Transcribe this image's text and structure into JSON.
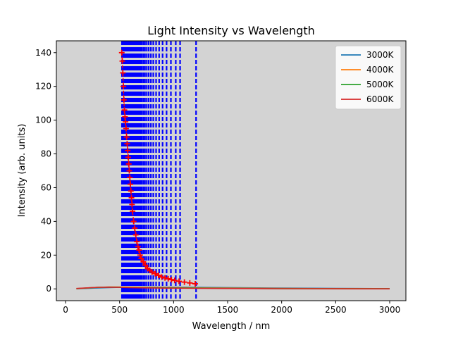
{
  "chart_data": {
    "type": "line",
    "title": "Light Intensity vs Wavelength",
    "xlabel": "Wavelength / nm",
    "ylabel": "Intensity (arb. units)",
    "xlim": [
      -85,
      3150
    ],
    "ylim": [
      -7,
      147
    ],
    "xticks": [
      0,
      500,
      1000,
      1500,
      2000,
      2500,
      3000
    ],
    "yticks": [
      0,
      20,
      40,
      60,
      80,
      100,
      120,
      140
    ],
    "grid": false,
    "background": "#d3d3d3",
    "legend_position": "top-right",
    "series": [
      {
        "name": "3000K",
        "color": "#1f77b4",
        "x": [
          100,
          200,
          300,
          400,
          500,
          600,
          800,
          1000,
          1200,
          1500,
          2000,
          2500,
          3000
        ],
        "y": [
          0.05,
          0.25,
          0.55,
          0.75,
          0.9,
          1.0,
          1.05,
          1.0,
          0.9,
          0.75,
          0.45,
          0.25,
          0.12
        ]
      },
      {
        "name": "4000K",
        "color": "#ff7f0e",
        "x": [
          100,
          200,
          300,
          400,
          500,
          600,
          800,
          1000,
          1200,
          1500,
          2000,
          2500,
          3000
        ],
        "y": [
          0.1,
          0.45,
          0.9,
          1.1,
          1.15,
          1.05,
          0.9,
          0.75,
          0.6,
          0.45,
          0.25,
          0.12,
          0.06
        ]
      },
      {
        "name": "5000K",
        "color": "#2ca02c",
        "x": [
          100,
          200,
          300,
          400,
          500,
          600,
          800,
          1000,
          1200,
          1500,
          2000,
          2500,
          3000
        ],
        "y": [
          0.15,
          0.55,
          0.95,
          1.05,
          1.0,
          0.9,
          0.7,
          0.55,
          0.45,
          0.3,
          0.15,
          0.08,
          0.04
        ]
      },
      {
        "name": "6000K",
        "color": "#d62728",
        "x": [
          100,
          200,
          300,
          400,
          500,
          600,
          800,
          1000,
          1200,
          1500,
          2000,
          2500,
          3000
        ],
        "y": [
          0.2,
          0.6,
          0.95,
          1.0,
          0.9,
          0.75,
          0.55,
          0.4,
          0.3,
          0.2,
          0.1,
          0.05,
          0.02
        ]
      }
    ],
    "scatter_series": {
      "color": "#ff0000",
      "x": [
        520,
        525,
        530,
        535,
        540,
        545,
        550,
        555,
        560,
        565,
        570,
        575,
        580,
        585,
        590,
        595,
        600,
        605,
        610,
        615,
        620,
        630,
        640,
        650,
        660,
        670,
        680,
        690,
        700,
        720,
        740,
        760,
        780,
        800,
        830,
        860,
        890,
        920,
        950,
        980,
        1010,
        1050,
        1100,
        1150,
        1200
      ],
      "y": [
        140,
        135,
        128,
        120,
        112,
        106,
        102,
        99,
        95,
        90,
        86,
        82,
        78,
        74,
        70,
        66,
        62,
        58,
        54,
        50,
        46,
        40,
        36,
        32,
        28,
        25,
        23,
        20,
        18,
        16,
        14,
        12,
        11,
        10,
        9,
        8,
        7,
        6.5,
        6,
        5.5,
        5,
        4.5,
        4,
        3.5,
        3
      ]
    },
    "vlines": {
      "color": "#0000ff",
      "style": "dashed",
      "x": [
        522,
        530,
        538,
        546,
        554,
        562,
        570,
        578,
        586,
        594,
        602,
        610,
        618,
        626,
        634,
        642,
        650,
        660,
        670,
        680,
        692,
        705,
        720,
        735,
        752,
        770,
        790,
        812,
        838,
        866,
        898,
        935,
        975,
        1020,
        1060,
        1208
      ]
    }
  }
}
